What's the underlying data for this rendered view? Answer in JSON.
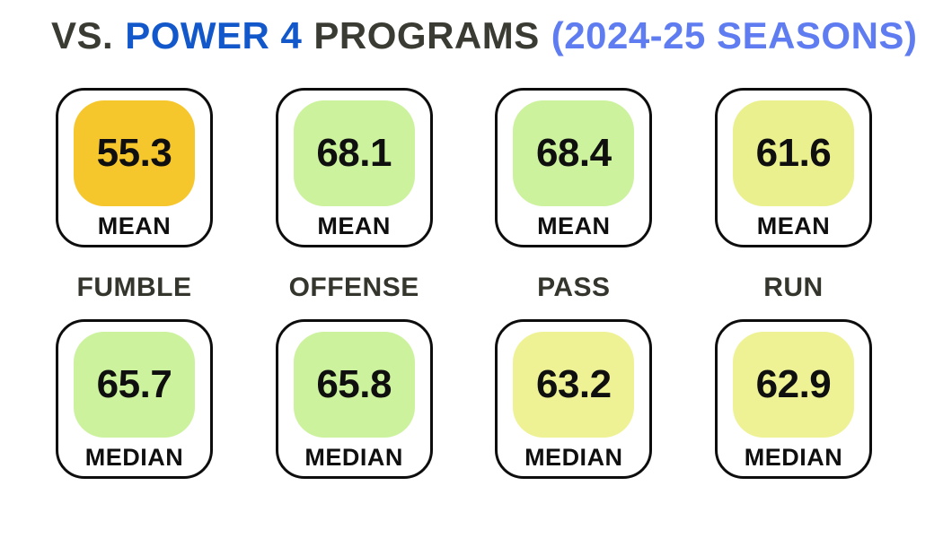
{
  "title": {
    "prefix": "VS.",
    "highlight": "POWER 4",
    "suffix": "PROGRAMS",
    "season": "(2024-25 SEASONS)"
  },
  "colors": {
    "title_dark": "#3A3B33",
    "title_blue": "#1358CB",
    "title_light_blue": "#5F7DF1",
    "card_border": "#0D0D0D",
    "tile_gold": "#F6C62D",
    "tile_light_green": "#CCF29E",
    "tile_pale_yellow_green": "#EAF08E",
    "tile_pale_yellow": "#EEF295"
  },
  "labels": {
    "mean": "MEAN",
    "median": "MEDIAN"
  },
  "columns": [
    {
      "label": "FUMBLE",
      "mean": "55.3",
      "mean_color": "#F6C62D",
      "median": "65.7",
      "median_color": "#CCF29E"
    },
    {
      "label": "OFFENSE",
      "mean": "68.1",
      "mean_color": "#CCF29E",
      "median": "65.8",
      "median_color": "#CCF29E"
    },
    {
      "label": "PASS",
      "mean": "68.4",
      "mean_color": "#CCF29E",
      "median": "63.2",
      "median_color": "#EEF295"
    },
    {
      "label": "RUN",
      "mean": "61.6",
      "mean_color": "#EAF08E",
      "median": "62.9",
      "median_color": "#EEF295"
    }
  ],
  "chart_data": {
    "type": "table",
    "title": "VS. POWER 4 PROGRAMS (2024-25 SEASONS)",
    "categories": [
      "FUMBLE",
      "OFFENSE",
      "PASS",
      "RUN"
    ],
    "series": [
      {
        "name": "MEAN",
        "values": [
          55.3,
          68.1,
          68.4,
          61.6
        ]
      },
      {
        "name": "MEDIAN",
        "values": [
          65.7,
          65.8,
          63.2,
          62.9
        ]
      }
    ],
    "layout_hint": "4 category columns; MEAN card row on top, category label in middle, MEDIAN card row below; tile color encodes value (gold = lowest, light green = highest)"
  }
}
